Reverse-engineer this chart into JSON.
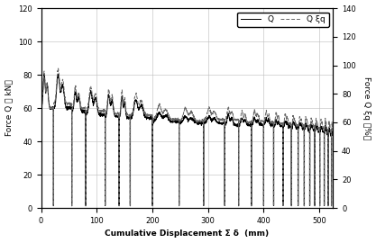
{
  "xlabel": "Cumulative Displacement Σ δ  (mm)",
  "ylabel_left": "Force Q （ kN）",
  "ylabel_right": "Force Q ξq （%）",
  "legend_Q": "Q",
  "legend_Qxiq": "Q ξq",
  "xlim": [
    0,
    525
  ],
  "ylim_left": [
    0,
    120
  ],
  "ylim_right": [
    0,
    140
  ],
  "yticks_left": [
    0,
    20,
    40,
    60,
    80,
    100,
    120
  ],
  "yticks_right": [
    0,
    20,
    40,
    60,
    80,
    100,
    120,
    140
  ],
  "xticks": [
    0,
    100,
    200,
    300,
    400,
    500
  ],
  "bg_color": "#ffffff",
  "Q_color": "#000000",
  "Qxiq_color": "#666666",
  "grid_color": "#bbbbbb"
}
